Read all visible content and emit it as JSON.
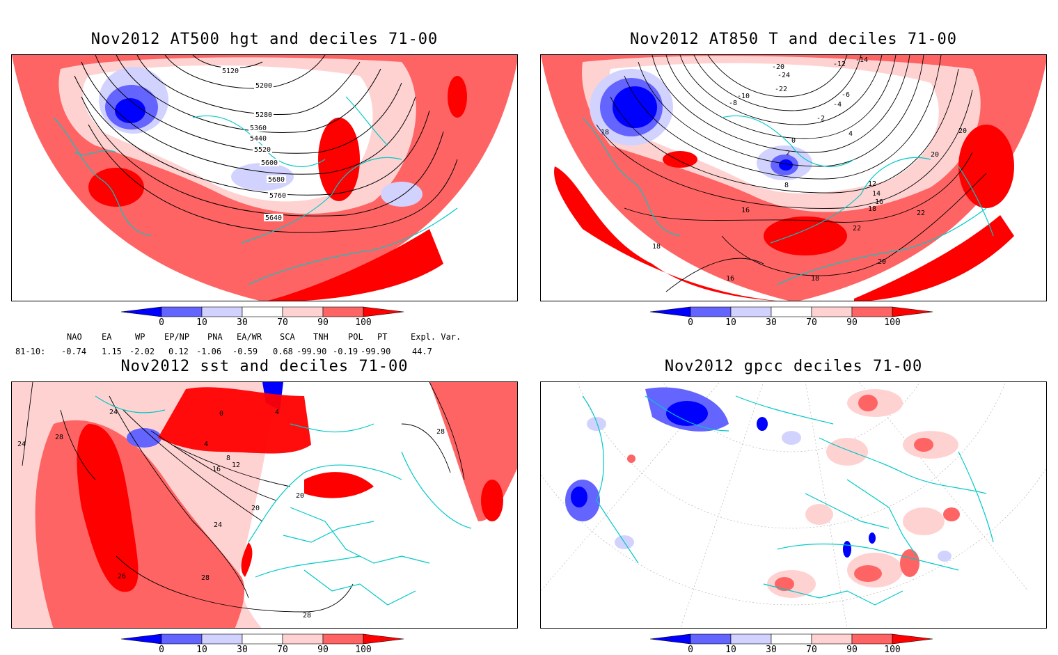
{
  "panels": [
    {
      "title": "Nov2012 AT500 hgt and deciles 71-00",
      "contour_labels": [
        "5120",
        "5200",
        "5280",
        "5360",
        "5440",
        "5520",
        "5600",
        "5680",
        "5760",
        "5640"
      ]
    },
    {
      "title": "Nov2012 AT850 T and deciles 71-00",
      "contour_labels": [
        "-14",
        "-12",
        "-20",
        "-24",
        "-22",
        "-10",
        "-8",
        "-6",
        "-4",
        "-2",
        "0",
        "2",
        "4",
        "8",
        "12",
        "14",
        "16",
        "18",
        "20",
        "22",
        "16",
        "18",
        "20",
        "22",
        "18",
        "20",
        "16",
        "18"
      ]
    },
    {
      "title": "Nov2012 sst and deciles 71-00",
      "contour_labels": [
        "24",
        "24",
        "28",
        "0",
        "4",
        "4",
        "8",
        "12",
        "16",
        "20",
        "20",
        "24",
        "26",
        "28",
        "28",
        "28"
      ]
    },
    {
      "title": "Nov2012 gpcc deciles 71-00",
      "contour_labels": []
    }
  ],
  "colorbar": {
    "ticks": [
      "0",
      "10",
      "30",
      "70",
      "90",
      "100"
    ],
    "colors": [
      "#0000ff",
      "#6464ff",
      "#d2d2ff",
      "#ffffff",
      "#ffd2d2",
      "#ff6464",
      "#ff0000"
    ]
  },
  "indices": {
    "headers": [
      "NAO",
      "EA",
      "WP",
      "EP/NP",
      "PNA",
      "EA/WR",
      "SCA",
      "TNH",
      "POL",
      "PT",
      "Expl. Var."
    ],
    "row_label": "81-10:",
    "values": [
      "-0.74",
      "1.15",
      "-2.02",
      "0.12",
      "-1.06",
      "-0.59",
      "0.68",
      "-99.90",
      "-0.19",
      "-99.90",
      "44.7"
    ]
  }
}
